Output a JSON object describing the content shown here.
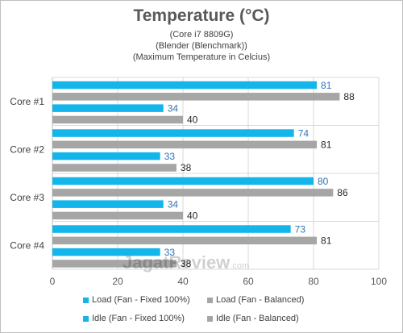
{
  "chart_data": {
    "type": "bar",
    "orientation": "horizontal",
    "title": "Temperature (°C)",
    "subtitles": [
      "(Core i7 8809G)",
      "(Blender (Blenchmark))",
      "(Maximum Temperature in Celcius)"
    ],
    "categories": [
      "Core #1",
      "Core #2",
      "Core #3",
      "Core #4"
    ],
    "series": [
      {
        "name": "Load (Fan - Fixed 100%)",
        "color": "#13b5ea",
        "label_color": "#2e75b6",
        "values": [
          81,
          74,
          80,
          73
        ]
      },
      {
        "name": "Load (Fan - Balanced)",
        "color": "#a6a6a6",
        "label_color": "#262626",
        "values": [
          88,
          81,
          86,
          81
        ]
      },
      {
        "name": "Idle (Fan - Fixed 100%)",
        "color": "#13b5ea",
        "label_color": "#2e75b6",
        "values": [
          34,
          33,
          34,
          33
        ]
      },
      {
        "name": "Idle (Fan - Balanced)",
        "color": "#a6a6a6",
        "label_color": "#262626",
        "values": [
          40,
          38,
          40,
          38
        ]
      }
    ],
    "xlim": [
      0,
      100
    ],
    "xticks": [
      0,
      20,
      40,
      60,
      80,
      100
    ],
    "grid": true,
    "legend_position": "bottom"
  },
  "watermark": {
    "text": "JagatReview",
    "suffix": ".com"
  }
}
